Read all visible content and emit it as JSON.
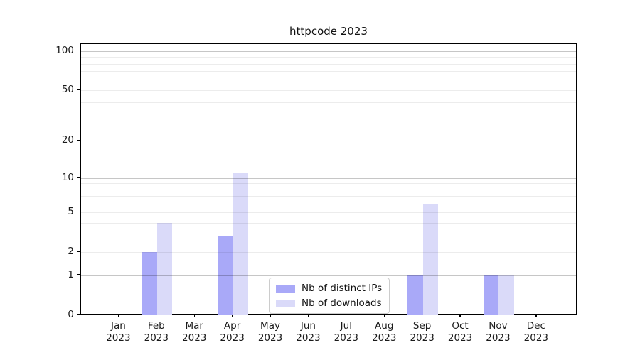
{
  "title": "httpcode 2023",
  "chart_data": {
    "type": "bar",
    "title": "httpcode 2023",
    "categories": [
      "Jan",
      "Feb",
      "Mar",
      "Apr",
      "May",
      "Jun",
      "Jul",
      "Aug",
      "Sep",
      "Oct",
      "Nov",
      "Dec"
    ],
    "x_tick_year": "2023",
    "series": [
      {
        "name": "Nb of distinct IPs",
        "color": "#a9a9f8",
        "values": [
          0,
          2,
          0,
          3,
          0,
          0,
          0,
          0,
          1,
          0,
          1,
          0
        ]
      },
      {
        "name": "Nb of downloads",
        "color": "#dadaf9",
        "values": [
          0,
          4,
          0,
          11,
          0,
          0,
          0,
          0,
          6,
          0,
          1,
          0
        ]
      }
    ],
    "xlabel": "",
    "ylabel": "",
    "yscale": "log1p",
    "ylim": [
      0,
      113
    ],
    "yticks": [
      0,
      1,
      2,
      5,
      10,
      20,
      50,
      100
    ],
    "grid": "horizontal",
    "grid_major_ticks": [
      1,
      10,
      100
    ],
    "grid_minor_ticks": [
      2,
      3,
      4,
      5,
      6,
      7,
      8,
      9,
      20,
      30,
      40,
      50,
      60,
      70,
      80,
      90
    ],
    "grid_major_color": "#c7c7c7",
    "grid_minor_color": "#ededed",
    "axis_color": "#000000",
    "legend": {
      "position": "lower center",
      "entries": [
        "Nb of distinct IPs",
        "Nb of downloads"
      ]
    }
  }
}
